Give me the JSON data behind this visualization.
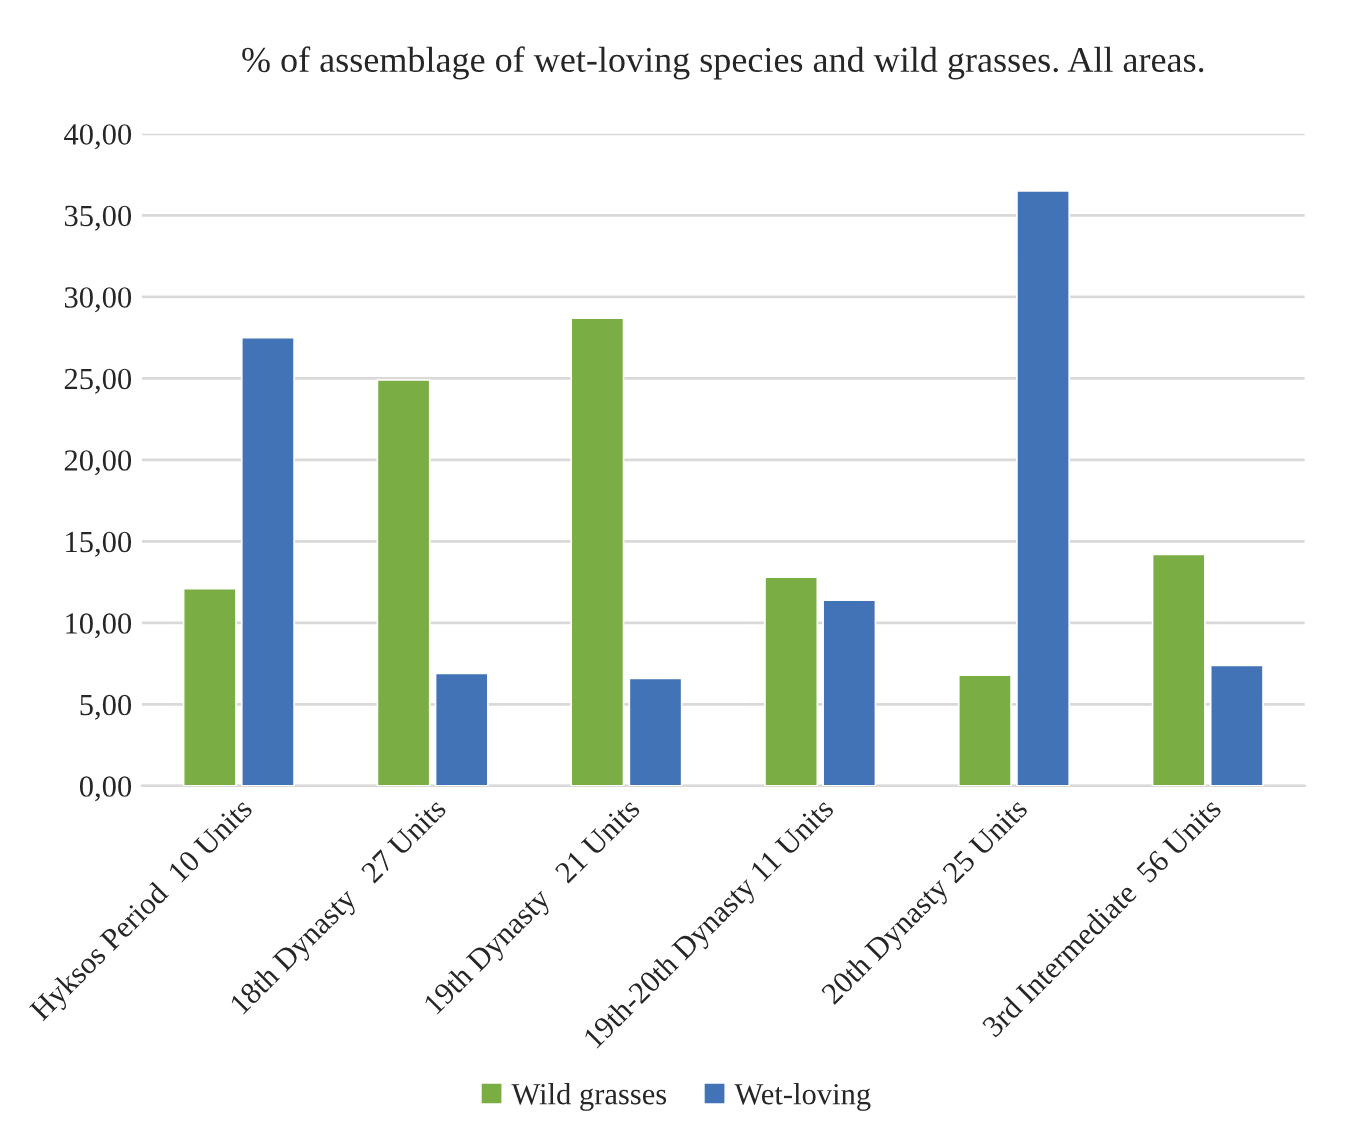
{
  "chart_data": {
    "type": "bar",
    "title": "% of assemblage of wet-loving species and wild grasses. All areas.",
    "categories": [
      "Hyksos Period  10 Units",
      "18th Dynasty   27 Units",
      "19th Dynasty   21 Units",
      "19th-20th Dynasty 11 Units",
      "20th Dynasty 25 Units",
      "3rd Intermediate  56 Units"
    ],
    "series": [
      {
        "name": "Wild grasses",
        "color": "#7aad43",
        "values": [
          12.1,
          24.9,
          28.7,
          12.8,
          6.8,
          14.2
        ]
      },
      {
        "name": "Wet-loving",
        "color": "#4173b6",
        "values": [
          27.5,
          6.9,
          6.6,
          11.4,
          36.5,
          7.4
        ]
      }
    ],
    "ylim": [
      0,
      40
    ],
    "yticks": [
      {
        "value": 0,
        "label": "0,00"
      },
      {
        "value": 5,
        "label": "5,00"
      },
      {
        "value": 10,
        "label": "10,00"
      },
      {
        "value": 15,
        "label": "15,00"
      },
      {
        "value": 20,
        "label": "20,00"
      },
      {
        "value": 25,
        "label": "25,00"
      },
      {
        "value": 30,
        "label": "30,00"
      },
      {
        "value": 35,
        "label": "35,00"
      },
      {
        "value": 40,
        "label": "40,00"
      }
    ],
    "grid": "y",
    "legend": "bottom"
  }
}
